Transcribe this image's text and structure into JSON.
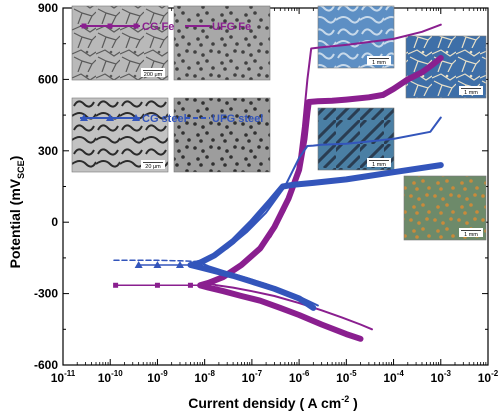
{
  "chart_data": {
    "type": "line",
    "xlabel": "Current densidy ( A cm",
    "xlabel_sup": "-2",
    "xlabel_end": " )",
    "ylabel": "Potential  (mV",
    "ylabel_sub": "SCE",
    "ylabel_end": ")",
    "x_scale": "log",
    "xlim_exp": [
      -11,
      -2
    ],
    "ylim": [
      -600,
      900
    ],
    "y_ticks": [
      -600,
      -300,
      0,
      300,
      600,
      900
    ],
    "x_tick_bases": [
      "10",
      "10",
      "10",
      "10",
      "10",
      "10",
      "10",
      "10",
      "10",
      "10"
    ],
    "x_tick_exps": [
      "-11",
      "-10",
      "-9",
      "-8",
      "-7",
      "-6",
      "-5",
      "-4",
      "-3",
      "-2"
    ],
    "legend": {
      "placement": "top-left",
      "entries": [
        {
          "label": "CG Fe",
          "color": "#8a1f8f",
          "marker": "square",
          "style": "solid"
        },
        {
          "label": "UFG Fe",
          "color": "#8a1f8f",
          "marker": "none",
          "style": "solid"
        },
        {
          "label": "CG steel",
          "color": "#3355bb",
          "marker": "triangle",
          "style": "solid"
        },
        {
          "label": "UFG steel",
          "color": "#3355bb",
          "marker": "none",
          "style": "dashed"
        }
      ]
    },
    "micrograph_labels": [
      "200 μm",
      "20 μm",
      "1 mm",
      "1 mm",
      "1 mm",
      "1 mm"
    ],
    "series": [
      {
        "name": "CG Fe",
        "color": "#8a1f8f",
        "width": 6,
        "x": [
          2e-05,
          1e-05,
          3e-06,
          1e-06,
          4e-07,
          1.5e-07,
          6e-08,
          2.5e-08,
          1.2e-08,
          8e-09,
          1.2e-08,
          2.5e-08,
          6e-08,
          1.5e-07,
          3e-07,
          6e-07,
          1e-06,
          1.3e-06,
          1.5e-06,
          1.6e-06,
          2.5e-06,
          5e-06,
          1e-05,
          3e-05,
          6e-05
        ],
        "y": [
          -490,
          -470,
          -430,
          -390,
          -360,
          -330,
          -310,
          -290,
          -275,
          -265,
          -255,
          -230,
          -180,
          -110,
          -20,
          100,
          220,
          350,
          460,
          505,
          508,
          510,
          515,
          525,
          535
        ]
      },
      {
        "name": "CG Fe passive",
        "color": "#8a1f8f",
        "width": 6,
        "x": [
          6e-05,
          0.0001,
          0.0002,
          0.0004,
          0.0007,
          0.001
        ],
        "y": [
          535,
          560,
          600,
          630,
          665,
          690
        ]
      },
      {
        "name": "UFG Fe",
        "color": "#8a1f8f",
        "width": 2,
        "x": [
          3.5e-05,
          2e-05,
          8e-06,
          3e-06,
          1e-06,
          3e-07,
          1e-07,
          4e-08,
          1.8e-08,
          1.2e-08,
          1.8e-08,
          4e-08,
          1e-07,
          2.5e-07,
          5e-07,
          9e-07,
          1.2e-06,
          1.5e-06,
          1.8e-06,
          3e-06,
          1e-05,
          0.0001,
          0.0004,
          0.001
        ],
        "y": [
          -450,
          -430,
          -400,
          -370,
          -340,
          -310,
          -290,
          -275,
          -265,
          -255,
          -240,
          -200,
          -140,
          -60,
          50,
          200,
          400,
          600,
          730,
          735,
          745,
          770,
          800,
          830
        ]
      },
      {
        "name": "UFG Fe baseline",
        "color": "#8a1f8f",
        "width": 1.5,
        "x": [
          1.3e-10,
          1e-09,
          5e-09,
          1e-08
        ],
        "y": [
          -265,
          -265,
          -265,
          -265
        ]
      },
      {
        "name": "CG steel",
        "color": "#3355bb",
        "width": 6,
        "x": [
          2e-06,
          1e-06,
          3e-07,
          1e-07,
          4e-08,
          1.6e-08,
          8e-09,
          5e-09,
          8e-09,
          1.6e-08,
          4e-08,
          1e-07,
          2.5e-07,
          4.5e-07,
          8e-07,
          2e-06,
          1e-05,
          0.0001,
          0.001
        ],
        "y": [
          -360,
          -320,
          -280,
          -250,
          -225,
          -205,
          -190,
          -180,
          -170,
          -140,
          -80,
          0,
          90,
          150,
          158,
          165,
          180,
          210,
          240
        ]
      },
      {
        "name": "CG steel baseline",
        "color": "#3355bb",
        "width": 1.5,
        "x": [
          4e-10,
          1e-09,
          5e-09
        ],
        "y": [
          -180,
          -180,
          -180
        ]
      },
      {
        "name": "UFG steel",
        "color": "#3355bb",
        "width": 2,
        "x": [
          2.5e-06,
          1.2e-06,
          5e-07,
          2e-07,
          8e-08,
          3e-08,
          1.2e-08,
          7e-09,
          1.2e-08,
          3e-08,
          8e-08,
          2e-07,
          5e-07,
          1e-06,
          1.5e-06,
          2e-06,
          3e-06,
          1e-05,
          0.0001,
          0.0006,
          0.001
        ],
        "y": [
          -350,
          -320,
          -290,
          -260,
          -235,
          -210,
          -185,
          -165,
          -150,
          -110,
          -40,
          40,
          150,
          270,
          320,
          322,
          325,
          330,
          350,
          380,
          440
        ]
      },
      {
        "name": "UFG steel baseline",
        "color": "#3355bb",
        "width": 1.5,
        "dash": "5,3",
        "x": [
          1.2e-10,
          1e-09,
          3e-09,
          7e-09
        ],
        "y": [
          -160,
          -160,
          -162,
          -165
        ]
      }
    ]
  }
}
